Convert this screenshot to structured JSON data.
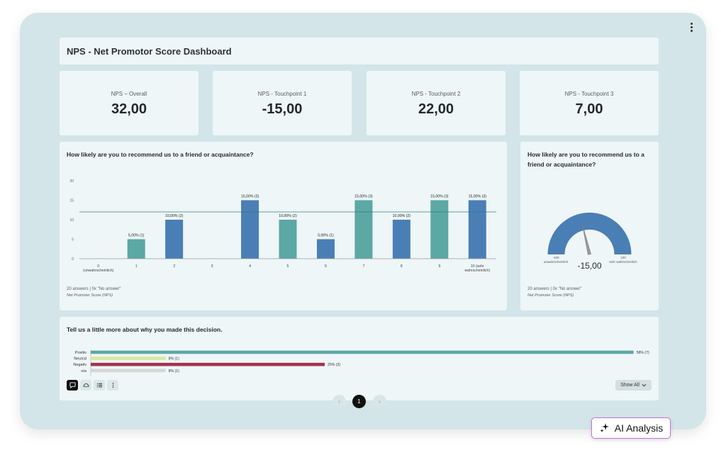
{
  "dashboard": {
    "title": "NPS - Net Promotor Score Dashboard"
  },
  "kpis": [
    {
      "label": "NPS – Overall",
      "value": "32,00"
    },
    {
      "label": "NPS - Touchpoint 1",
      "value": "-15,00"
    },
    {
      "label": "NPS - Touchpoint 2",
      "value": "22,00"
    },
    {
      "label": "NPS - Touchpoint 3",
      "value": "7,00"
    }
  ],
  "bar_panel": {
    "question": "How likely are you to recommend us to a friend or acquaintance?",
    "footnote": "20 answers | 0x \"No answer\"",
    "source": "Net Promoter Score (NPS)"
  },
  "gauge_panel": {
    "question_line1": "How likely are you to recommend us to a",
    "question_line2": "friend or acquaintance?",
    "footnote": "20 answers | 0x \"No answer\"",
    "source": "Net Promoter Score (NPS)",
    "left_scale": "-100",
    "left_label": "unwahrscheinlich",
    "right_scale": "100",
    "right_label": "sehr wahrscheinlich",
    "value": "-15,00",
    "numeric_value": -15,
    "min": -100,
    "max": 100
  },
  "text_panel": {
    "question": "Tell us a little more about why you made this decision.",
    "show_all_label": "Show All"
  },
  "pagination": {
    "prev": "‹",
    "current": "1",
    "next": "›"
  },
  "ai_button": {
    "label": "AI Analysis"
  },
  "colors": {
    "teal": "#5ba8a5",
    "blue": "#4a7fb5",
    "negativ": "#a2334f",
    "neutral": "#d8e89c",
    "na": "#d6d6d6",
    "frame": "#d3e5e8"
  },
  "chart_data": [
    {
      "type": "bar",
      "categories": [
        "0",
        "1",
        "2",
        "3",
        "4",
        "5",
        "6",
        "7",
        "8",
        "9",
        "10"
      ],
      "category_labels": [
        [
          "0",
          "(unwahrscheinlich)"
        ],
        [
          "1"
        ],
        [
          "2"
        ],
        [
          "3"
        ],
        [
          "4"
        ],
        [
          "5"
        ],
        [
          "6"
        ],
        [
          "7"
        ],
        [
          "8"
        ],
        [
          "9"
        ],
        [
          "10 (sehr",
          "wahrscheinlich)"
        ]
      ],
      "values": [
        0,
        5,
        10,
        0,
        15,
        10,
        5,
        15,
        10,
        15,
        15
      ],
      "data_labels": [
        "",
        "5,00% (1)",
        "10,00% (2)",
        "",
        "15,00% (3)",
        "10,00% (2)",
        "5,00% (1)",
        "15,00% (3)",
        "10,00% (2)",
        "15,00% (3)",
        "15,00% (3)"
      ],
      "bar_colors": [
        "#5ba8a5",
        "#5ba8a5",
        "#4a7fb5",
        "#5ba8a5",
        "#4a7fb5",
        "#5ba8a5",
        "#4a7fb5",
        "#5ba8a5",
        "#4a7fb5",
        "#5ba8a5",
        "#4a7fb5"
      ],
      "yticks": [
        "0",
        "5",
        "10",
        "15",
        "20"
      ],
      "ylim": [
        0,
        20
      ],
      "reference_line": 12
    },
    {
      "type": "bar",
      "orientation": "horizontal",
      "categories": [
        "Positiv",
        "Neutral",
        "Negativ",
        "n/a"
      ],
      "values": [
        58,
        8,
        25,
        8
      ],
      "data_labels": [
        "58% (7)",
        "8% (1)",
        "25% (3)",
        "8% (1)"
      ],
      "bar_colors": [
        "#5ba8a5",
        "#d8e89c",
        "#a2334f",
        "#d6d6d6"
      ],
      "xlim": [
        0,
        100
      ]
    }
  ]
}
